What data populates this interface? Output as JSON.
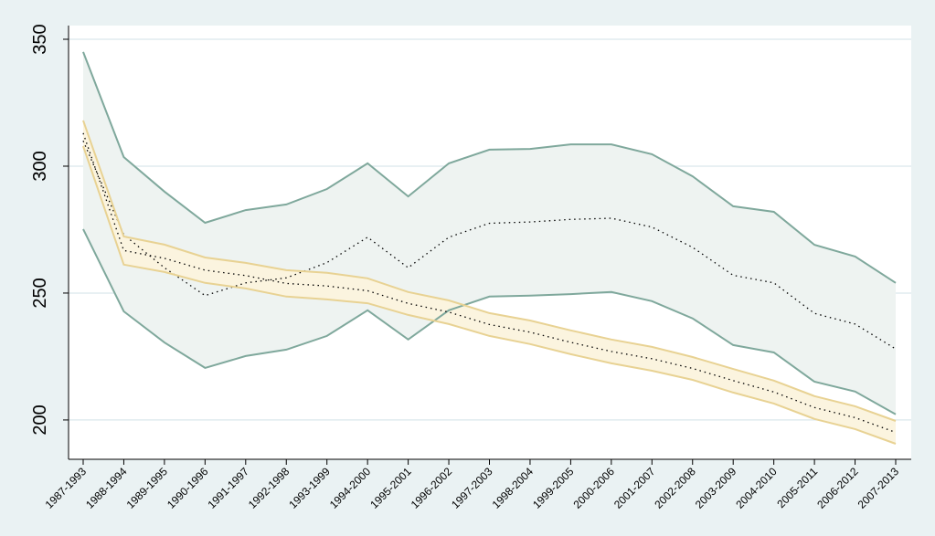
{
  "chart_data": {
    "type": "band",
    "categories": [
      "1987-1993",
      "1988-1994",
      "1989-1995",
      "1990-1996",
      "1991-1997",
      "1992-1998",
      "1993-1999",
      "1994-2000",
      "1995-2001",
      "1996-2002",
      "1997-2003",
      "1998-2004",
      "1999-2005",
      "2000-2006",
      "2001-2007",
      "2002-2008",
      "2003-2009",
      "2004-2010",
      "2005-2011",
      "2006-2012",
      "2007-2013"
    ],
    "series": [
      {
        "color": "#7fa89c",
        "fill": "#eef3f1",
        "center_color": "#000000",
        "upper": [
          345,
          303.6,
          290,
          277.7,
          282.7,
          284.9,
          291,
          301.1,
          288.1,
          301.1,
          306.5,
          306.8,
          308.6,
          308.6,
          304.7,
          296,
          284.2,
          282,
          269,
          264.4,
          254
        ],
        "values": [
          310,
          273,
          260,
          249,
          254,
          256,
          262,
          272,
          260,
          272,
          277.5,
          278,
          279,
          279.5,
          276,
          268,
          257,
          254,
          242,
          237.8,
          228
        ],
        "lower": [
          275.2,
          242.8,
          230.5,
          220.5,
          225.2,
          227.7,
          233.1,
          243.2,
          231.7,
          243.2,
          248.6,
          249,
          249.6,
          250.4,
          246.8,
          240,
          229.5,
          226.6,
          215.1,
          211.2,
          202.2
        ]
      },
      {
        "color": "#e8d293",
        "fill": "#fbf4df",
        "center_color": "#000000",
        "upper": [
          318,
          272.3,
          269.1,
          264,
          261.9,
          259,
          258,
          255.8,
          250.4,
          247.1,
          242.1,
          239.2,
          235.3,
          231.7,
          228.8,
          224.8,
          220.1,
          215.5,
          209.4,
          205.4,
          199.6
        ],
        "values": [
          313,
          266.8,
          263.7,
          259,
          256.9,
          253.8,
          252.8,
          250.9,
          245.9,
          242.5,
          237.6,
          234.6,
          230.6,
          227,
          224.1,
          220.3,
          215.5,
          211,
          204.9,
          200.9,
          195.1
        ],
        "lower": [
          307.9,
          261.2,
          258.3,
          254,
          251.8,
          248.6,
          247.5,
          246,
          241.4,
          237.8,
          233.1,
          229.9,
          225.9,
          222.3,
          219.4,
          215.8,
          210.8,
          206.5,
          200.4,
          196.4,
          190.6
        ]
      }
    ],
    "ylim": [
      184.5,
      355.4
    ],
    "yticks": [
      200,
      250,
      300,
      350
    ],
    "grid": true
  }
}
